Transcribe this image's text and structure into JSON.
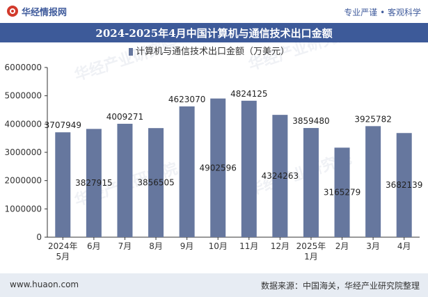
{
  "header": {
    "brand": "华经情报网",
    "slogan": "专业严谨 • 客观科学"
  },
  "title": "2024-2025年4月中国计算机与通信技术出口金额",
  "watermark": "华经产业研究院",
  "footer": {
    "website": "www.huaon.com",
    "source": "数据来源：中国海关，华经产业研究院整理"
  },
  "colors": {
    "bar": "#66779e",
    "title_band": "#3d5a99",
    "footer_band": "#e7ecf3",
    "brand": "#3f5b9c"
  },
  "chart_data": {
    "type": "bar",
    "categories": [
      "2024年\n5月",
      "6月",
      "7月",
      "8月",
      "9月",
      "10月",
      "11月",
      "12月",
      "2025年\n1月",
      "2月",
      "3月",
      "4月"
    ],
    "series": [
      {
        "name": "计算机与通信技术出口金额（万美元）",
        "values": [
          3707949,
          3827915,
          4009271,
          3856505,
          4623070,
          4902596,
          4824125,
          4324263,
          3859480,
          3165279,
          3925782,
          3682139
        ]
      }
    ],
    "label_position": [
      "top",
      "inside",
      "top",
      "inside",
      "top",
      "inside",
      "top",
      "inside",
      "top",
      "inside",
      "top",
      "inside"
    ],
    "ylim": [
      0,
      6000000
    ],
    "yticks": [
      0,
      1000000,
      2000000,
      3000000,
      4000000,
      5000000,
      6000000
    ],
    "legend": "top-center",
    "grid": false
  }
}
